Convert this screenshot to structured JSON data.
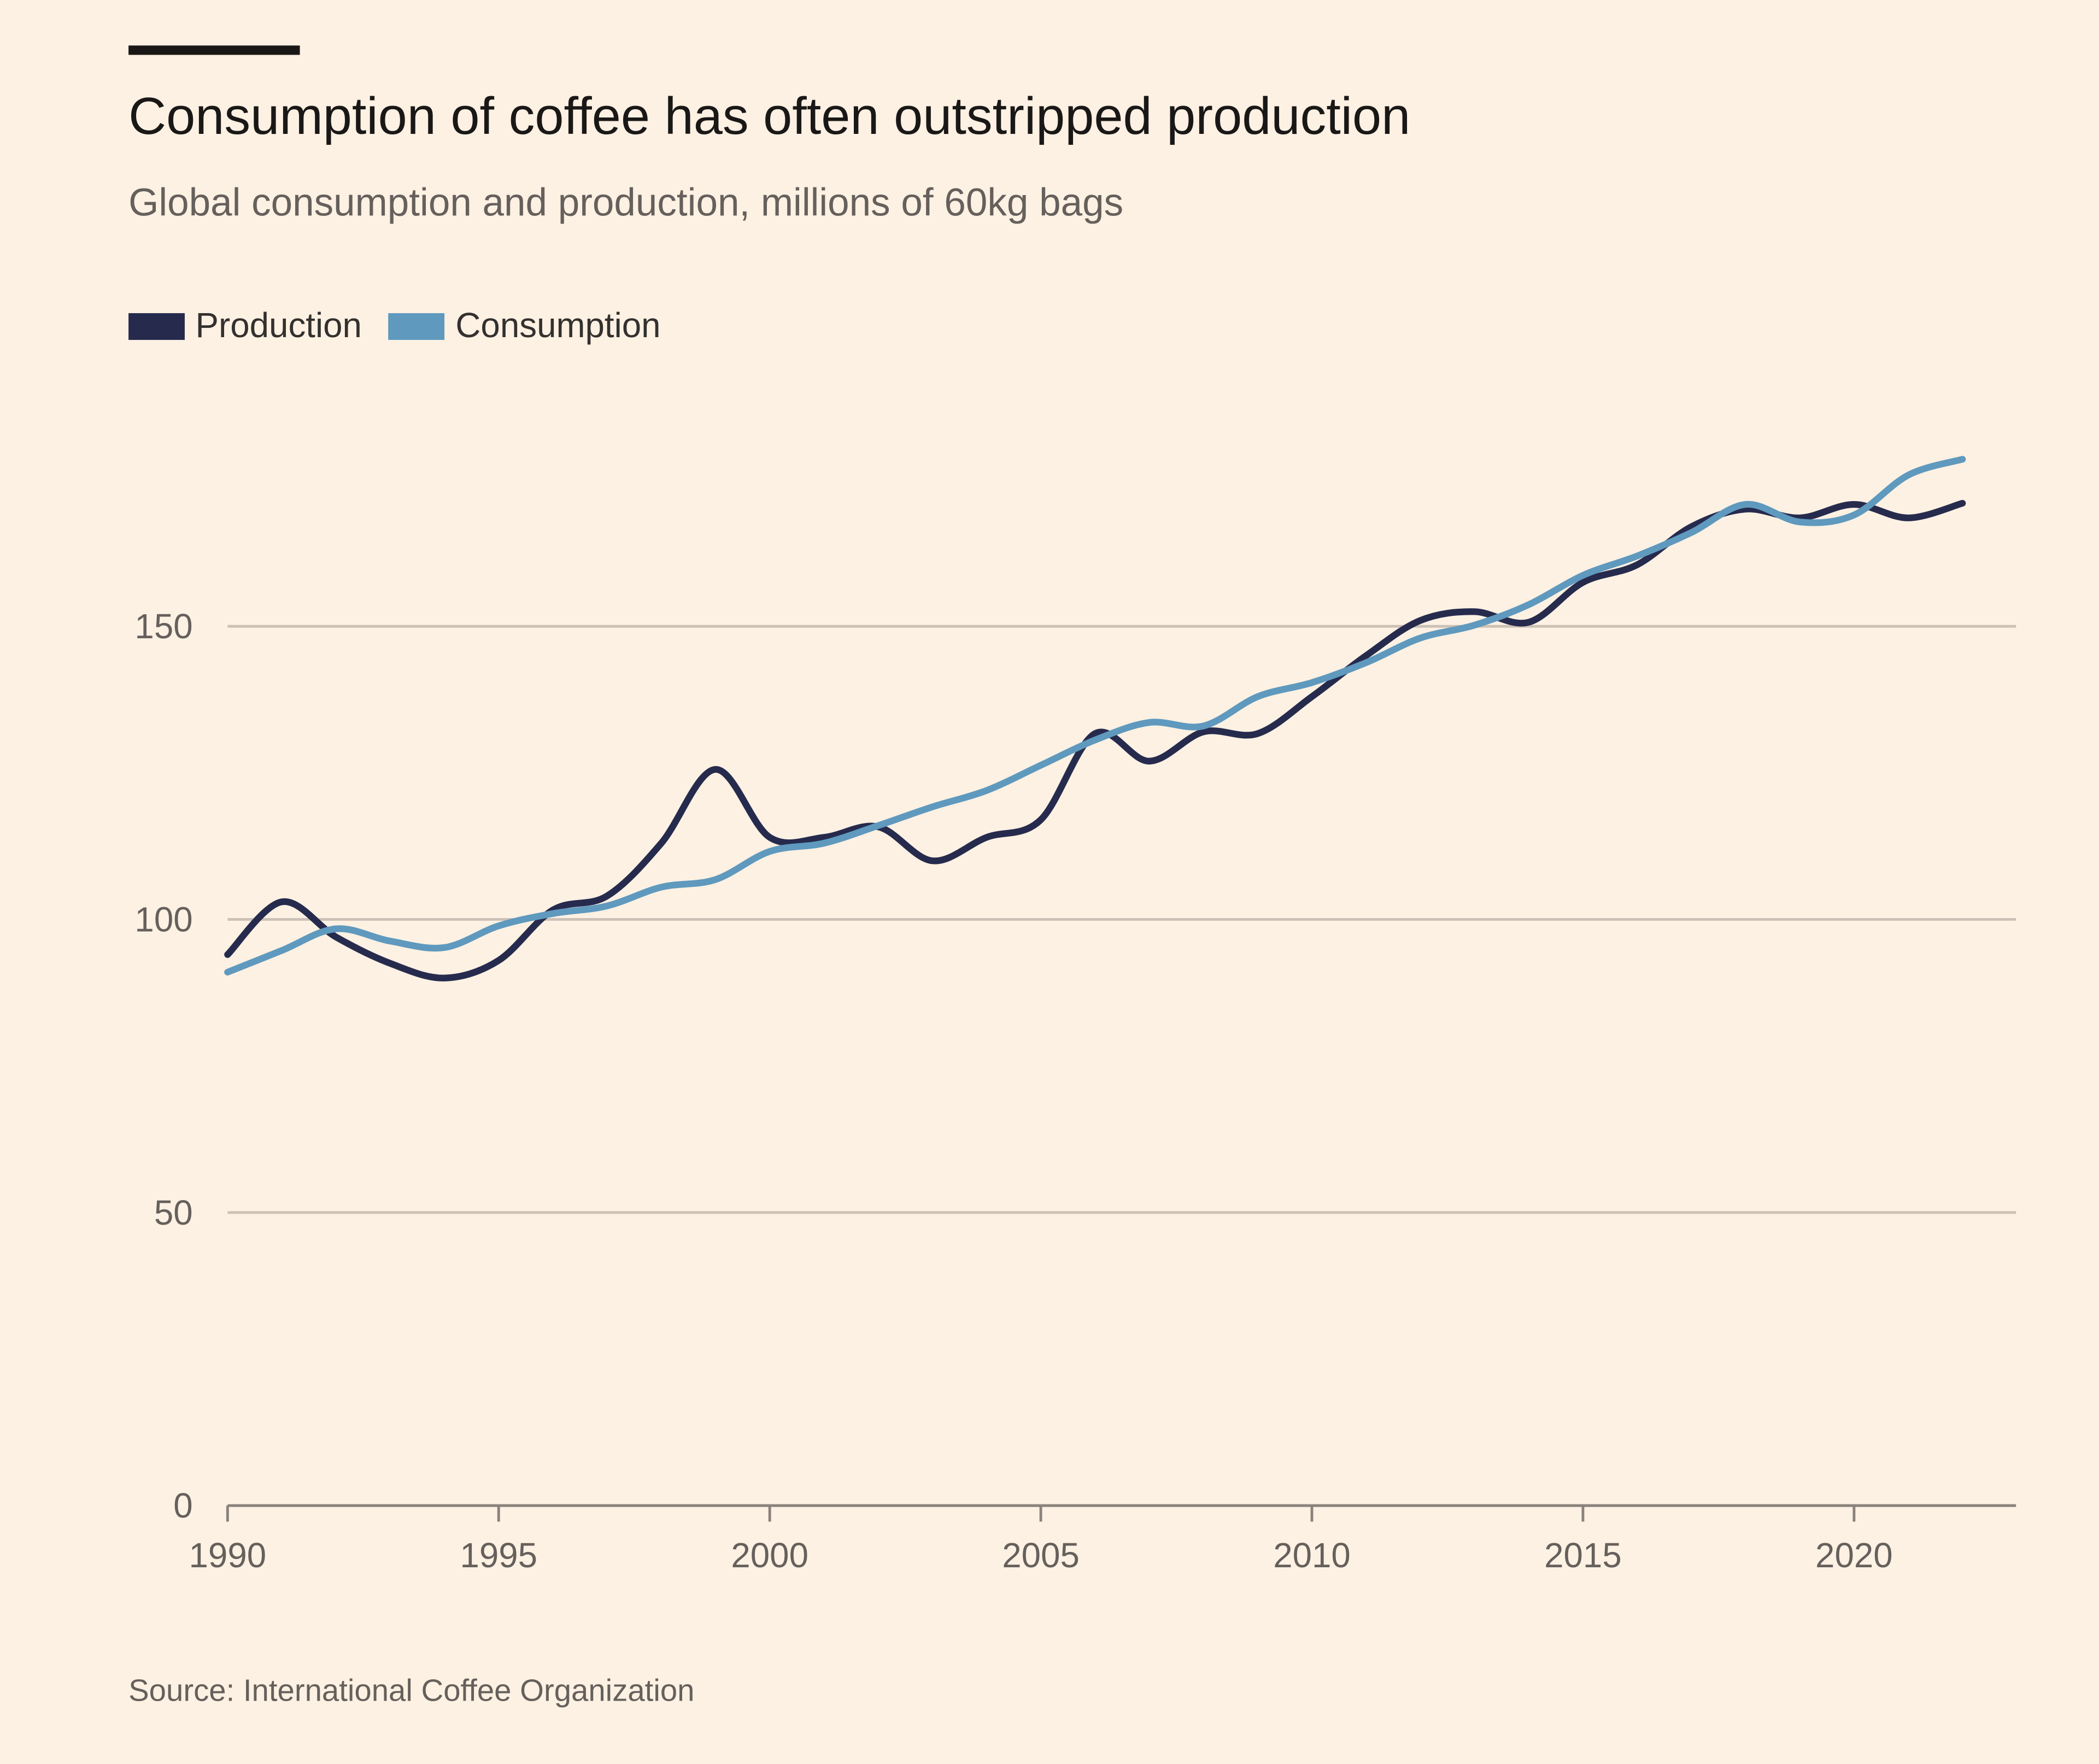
{
  "chart_data": {
    "type": "line",
    "title": "Consumption of coffee has often outstripped production",
    "subtitle": "Global consumption and production, millions of 60kg bags",
    "source": "Source: International Coffee Organization",
    "xlabel": "",
    "ylabel": "",
    "x": [
      1990,
      1991,
      1992,
      1993,
      1994,
      1995,
      1996,
      1997,
      1998,
      1999,
      2000,
      2001,
      2002,
      2003,
      2004,
      2005,
      2006,
      2007,
      2008,
      2009,
      2010,
      2011,
      2012,
      2013,
      2014,
      2015,
      2016,
      2017,
      2018,
      2019,
      2020,
      2021,
      2022
    ],
    "xlim": [
      1990,
      2023
    ],
    "ylim": [
      0,
      180
    ],
    "xticks": [
      "1990",
      "1995",
      "2000",
      "2005",
      "2010",
      "2015",
      "2020"
    ],
    "yticks": [
      "0",
      "50",
      "100",
      "150"
    ],
    "grid": "horizontal",
    "legend_position": "top-left",
    "series": [
      {
        "name": "Production",
        "color": "#262b4d",
        "values": [
          94,
          103,
          97,
          92.5,
          90,
          93,
          101.6,
          104,
          113,
          125.6,
          114,
          114,
          115.8,
          110,
          114,
          117,
          131.7,
          127,
          132,
          131.7,
          138,
          145,
          151,
          152.5,
          150.7,
          157.5,
          160.5,
          167,
          170,
          168.5,
          170.8,
          168.5,
          171
        ]
      },
      {
        "name": "Consumption",
        "color": "#5f99be",
        "values": [
          91,
          94.7,
          98.4,
          96.3,
          95.2,
          98.9,
          101,
          102.3,
          105.5,
          106.8,
          111.6,
          113,
          116,
          119.2,
          122,
          126.3,
          130.6,
          133.6,
          133,
          138,
          140.4,
          143.8,
          148,
          150.2,
          153.7,
          158.7,
          162,
          166,
          170.8,
          167.8,
          169,
          175.8,
          178.5
        ]
      }
    ]
  }
}
